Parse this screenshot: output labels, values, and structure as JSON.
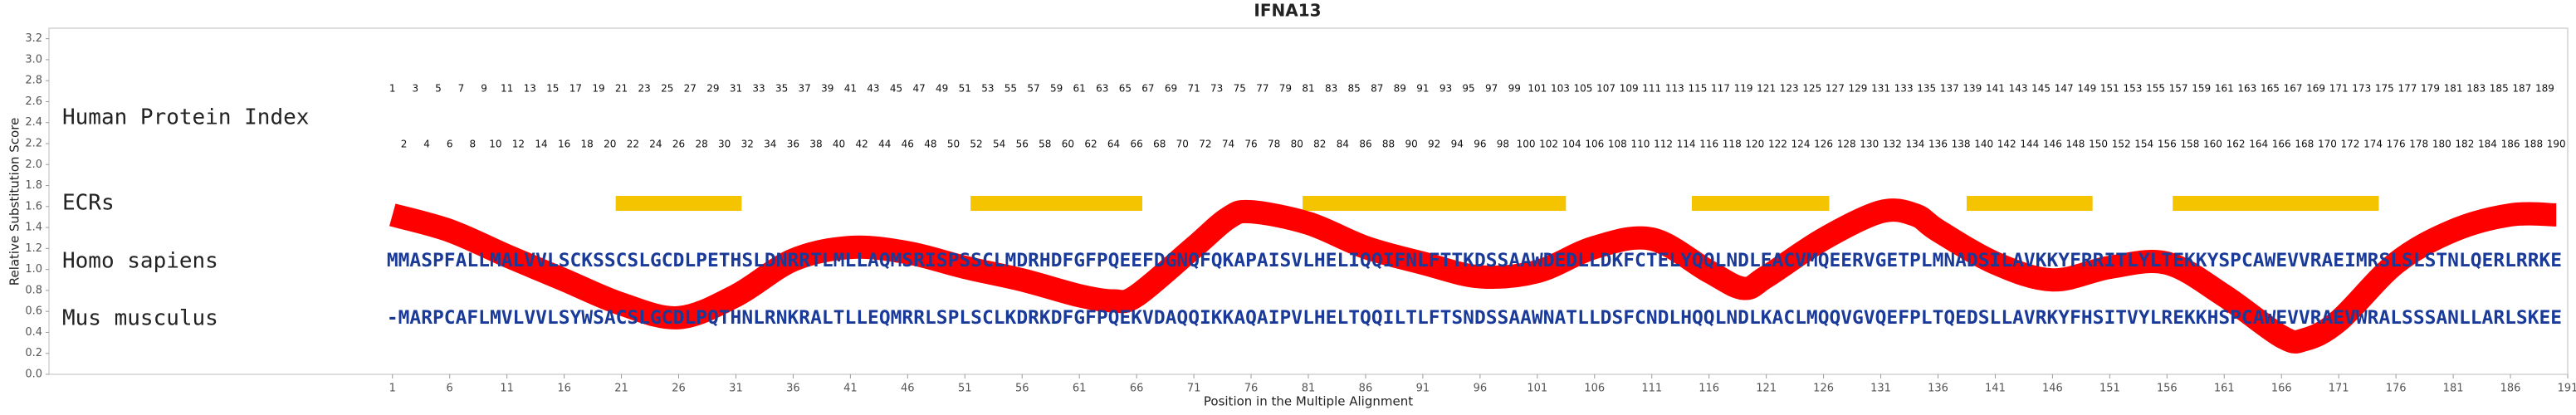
{
  "chart_data": {
    "type": "line",
    "title": "IFNA13",
    "x_label": "Position in the Multiple Alignment",
    "y_label": "Relative Substitution Score",
    "xlim": [
      -29,
      191
    ],
    "ylim": [
      0,
      3.3
    ],
    "xticks": [
      1,
      6,
      11,
      16,
      21,
      26,
      31,
      36,
      41,
      46,
      51,
      56,
      61,
      66,
      71,
      76,
      81,
      86,
      91,
      96,
      101,
      106,
      111,
      116,
      121,
      126,
      131,
      136,
      141,
      146,
      151,
      156,
      161,
      166,
      171,
      176,
      181,
      186,
      191
    ],
    "yticks": [
      {
        "value": 0,
        "label": "0.0"
      },
      {
        "value": 0.2,
        "label": "0.2"
      },
      {
        "value": 0.4,
        "label": "0.4"
      },
      {
        "value": 0.6,
        "label": "0.6"
      },
      {
        "value": 0.8,
        "label": "0.8"
      },
      {
        "value": 1,
        "label": "1.0"
      },
      {
        "value": 1.2,
        "label": "1.2"
      },
      {
        "value": 1.4,
        "label": "1.4"
      },
      {
        "value": 1.6,
        "label": "1.6"
      },
      {
        "value": 1.8,
        "label": "1.8"
      },
      {
        "value": 2,
        "label": "2.0"
      },
      {
        "value": 2.2,
        "label": "2.2"
      },
      {
        "value": 2.4,
        "label": "2.4"
      },
      {
        "value": 2.6,
        "label": "2.6"
      },
      {
        "value": 2.8,
        "label": "2.8"
      },
      {
        "value": 3,
        "label": "3.0"
      },
      {
        "value": 3.2,
        "label": "3.2"
      }
    ],
    "grid": false,
    "color": "#ff0000",
    "x": [
      1,
      6,
      11,
      16,
      21,
      26,
      31,
      36,
      41,
      46,
      51,
      56,
      61,
      64,
      66,
      71,
      74,
      76,
      81,
      86,
      91,
      96,
      101,
      106,
      111,
      116,
      119,
      121,
      126,
      131,
      134,
      136,
      141,
      146,
      151,
      156,
      161,
      166,
      168,
      171,
      176,
      181,
      186,
      190
    ],
    "values": [
      1.52,
      1.37,
      1.13,
      0.9,
      0.67,
      0.54,
      0.75,
      1.09,
      1.21,
      1.16,
      1.02,
      0.9,
      0.75,
      0.7,
      0.75,
      1.21,
      1.49,
      1.55,
      1.44,
      1.21,
      1.06,
      0.93,
      0.98,
      1.21,
      1.29,
      0.98,
      0.82,
      0.93,
      1.29,
      1.55,
      1.52,
      1.37,
      1.06,
      0.9,
      1.02,
      1.06,
      0.75,
      0.36,
      0.33,
      0.51,
      1.06,
      1.37,
      1.52,
      1.52
    ],
    "human_index": {
      "label": "Human Protein Index",
      "values": [
        1,
        2,
        3,
        4,
        5,
        6,
        7,
        8,
        9,
        10,
        11,
        12,
        13,
        14,
        15,
        16,
        17,
        18,
        19,
        20,
        21,
        22,
        23,
        24,
        25,
        26,
        27,
        28,
        29,
        30,
        31,
        32,
        33,
        34,
        35,
        36,
        37,
        38,
        39,
        40,
        41,
        42,
        43,
        44,
        45,
        46,
        47,
        48,
        49,
        50,
        51,
        52,
        53,
        54,
        55,
        56,
        57,
        58,
        59,
        60,
        61,
        62,
        63,
        64,
        65,
        66,
        67,
        68,
        69,
        70,
        71,
        72,
        73,
        74,
        75,
        76,
        77,
        78,
        79,
        80,
        81,
        82,
        83,
        84,
        85,
        86,
        87,
        88,
        89,
        90,
        91,
        92,
        93,
        94,
        95,
        96,
        97,
        98,
        99,
        100,
        101,
        102,
        103,
        104,
        105,
        106,
        107,
        108,
        109,
        110,
        111,
        112,
        113,
        114,
        115,
        116,
        117,
        118,
        119,
        120,
        121,
        122,
        123,
        124,
        125,
        126,
        127,
        128,
        129,
        130,
        131,
        132,
        133,
        134,
        135,
        136,
        137,
        138,
        139,
        140,
        141,
        142,
        143,
        144,
        145,
        146,
        147,
        148,
        149,
        150,
        151,
        152,
        153,
        154,
        155,
        156,
        157,
        158,
        159,
        160,
        161,
        162,
        163,
        164,
        165,
        166,
        167,
        168,
        169,
        170,
        171,
        172,
        173,
        174,
        175,
        176,
        177,
        178,
        179,
        180,
        181,
        182,
        183,
        184,
        185,
        186,
        187,
        188,
        189,
        190
      ]
    },
    "ecrs": {
      "label": "ECRs",
      "color": "#f5c400",
      "ranges": [
        [
          21,
          31
        ],
        [
          52,
          66
        ],
        [
          81,
          103
        ],
        [
          115,
          126
        ],
        [
          139,
          149
        ],
        [
          157,
          174
        ]
      ]
    },
    "sequences": [
      {
        "name": "Homo sapiens",
        "sequence": "MMASPFALLMALVVLSCKSSCSLGCDLPETHSLDNRRTLMLLAQMSRISPSSCLMDRHDFGFPQEEFDGNQFQKAPAISVLHELIQQIFNLFTTKDSSAAWDEDLLDKFCTELYQQLNDLEACVMQEERVGETPLMNADSILAVKKYFRRITLYLTEKKYSPCAWEVVRAEIMRSLSLSTNLQERLRRKE"
      },
      {
        "name": "Mus musculus",
        "sequence": "-MARPCAFLMVLVVLSYWSACSLGCDLPQTHNLRNKRALTLLEQMRRLSPLSCLKDRKDFGFPQEKVDAQQIKKAQAIPVLHELTQQILTLFTSNDSSAAWNATLLDSFCNDLHQQLNDLKACLMQQVGVQEFPLTQEDSLLAVRKYFHSITVYLREKKHSPCAWEVVRAEVWRALSSSANLLARLSKEE"
      }
    ]
  }
}
